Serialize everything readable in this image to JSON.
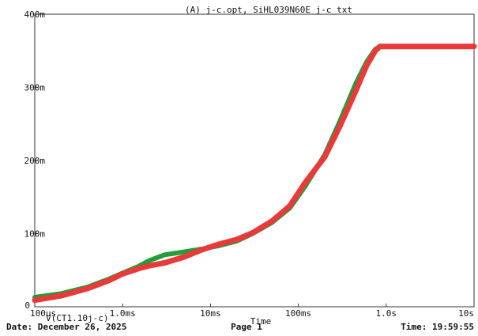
{
  "chart_data": {
    "type": "line",
    "title": "(A) j-c.opt, SiHL039N60E_j-c_txt",
    "xlabel": "Time",
    "ylabel": "",
    "x_scale": "log",
    "xlim": [
      0.0001,
      10
    ],
    "ylim": [
      0,
      400
    ],
    "x_tick_values": [
      0.0001,
      0.001,
      0.01,
      0.1,
      1,
      10
    ],
    "x_tick_labels": [
      "100us",
      "1.0ms",
      "10ms",
      "100ms",
      "1.0s",
      "10s"
    ],
    "y_tick_values": [
      0,
      100,
      200,
      300,
      400
    ],
    "y_tick_labels": [
      "0",
      "100m",
      "200m",
      "300m",
      "400m"
    ],
    "trace_label": "V(CT1.10j-c)",
    "grid": false,
    "series": [
      {
        "color": "#1f9e3a",
        "points": [
          [
            0.0001,
            13
          ],
          [
            0.0002,
            18
          ],
          [
            0.0004,
            27
          ],
          [
            0.0007,
            38
          ],
          [
            0.001,
            46
          ],
          [
            0.0015,
            55
          ],
          [
            0.002,
            63
          ],
          [
            0.003,
            71
          ],
          [
            0.005,
            75
          ],
          [
            0.008,
            79
          ],
          [
            0.012,
            83
          ],
          [
            0.02,
            90
          ],
          [
            0.03,
            100
          ],
          [
            0.05,
            115
          ],
          [
            0.08,
            135
          ],
          [
            0.12,
            165
          ],
          [
            0.2,
            208
          ],
          [
            0.3,
            255
          ],
          [
            0.45,
            305
          ],
          [
            0.6,
            335
          ],
          [
            0.75,
            352
          ],
          [
            0.85,
            356
          ],
          [
            1,
            356
          ],
          [
            2,
            356
          ],
          [
            5,
            356
          ],
          [
            10,
            356
          ]
        ]
      },
      {
        "color": "#e83a3a",
        "points": [
          [
            0.0001,
            9
          ],
          [
            0.0002,
            15
          ],
          [
            0.0004,
            25
          ],
          [
            0.0007,
            36
          ],
          [
            0.001,
            45
          ],
          [
            0.0015,
            52
          ],
          [
            0.002,
            56
          ],
          [
            0.003,
            60
          ],
          [
            0.005,
            68
          ],
          [
            0.008,
            78
          ],
          [
            0.012,
            85
          ],
          [
            0.02,
            92
          ],
          [
            0.03,
            101
          ],
          [
            0.05,
            117
          ],
          [
            0.08,
            138
          ],
          [
            0.12,
            170
          ],
          [
            0.2,
            205
          ],
          [
            0.3,
            248
          ],
          [
            0.45,
            295
          ],
          [
            0.6,
            330
          ],
          [
            0.75,
            350
          ],
          [
            0.85,
            356
          ],
          [
            1,
            356
          ],
          [
            2,
            356
          ],
          [
            5,
            356
          ],
          [
            10,
            356
          ]
        ]
      }
    ]
  },
  "footer": {
    "date": "Date: December 26, 2025",
    "page": "Page 1",
    "time": "Time: 19:59:55"
  }
}
